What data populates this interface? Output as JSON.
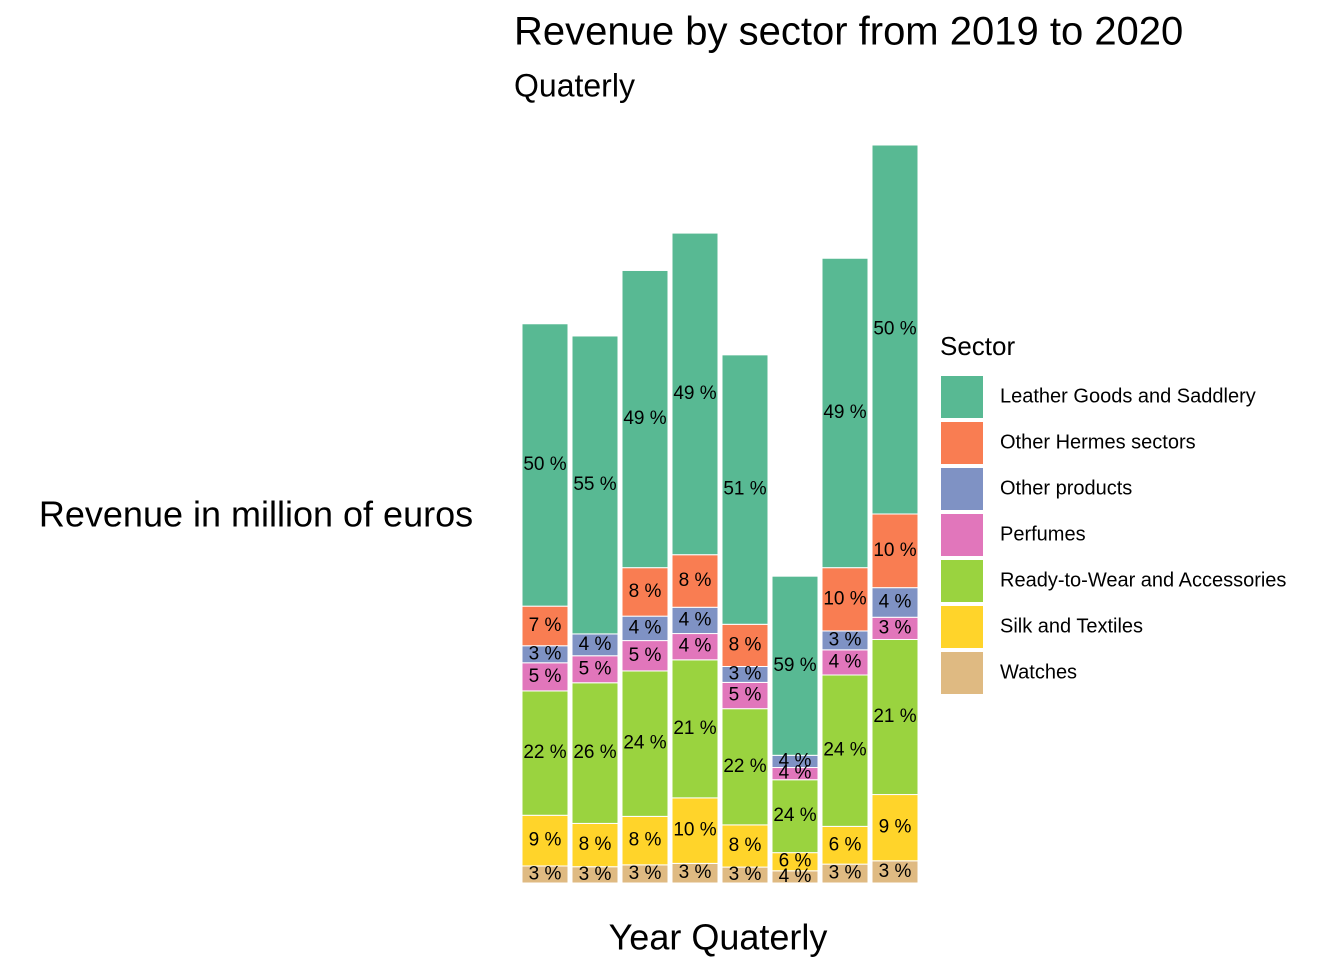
{
  "chart_data": {
    "type": "stacked_bar",
    "title": "Revenue by sector from 2019 to 2020",
    "subtitle": "Quaterly",
    "x_label": "Year Quaterly",
    "y_label": "Revenue in million of euros",
    "legend_title": "Sector",
    "legend_position": "right",
    "categories": [
      null,
      null,
      null,
      null,
      null,
      null,
      null,
      null
    ],
    "series": [
      {
        "name": "Leather Goods and Saddlery",
        "color": "#58b993",
        "values": [
          763,
          805,
          803,
          869,
          728,
          484,
          836,
          997
        ],
        "value_labels": [
          "50 %",
          "55 %",
          "49 %",
          "49 %",
          "51 %",
          "59 %",
          "49 %",
          "50 %"
        ]
      },
      {
        "name": "Other Hermes sectors",
        "color": "#f97d52",
        "values": [
          107,
          null,
          131,
          142,
          114,
          null,
          171,
          199
        ],
        "value_labels": [
          "7 %",
          null,
          "8 %",
          "8 %",
          "8 %",
          null,
          "10 %",
          "10 %"
        ]
      },
      {
        "name": "Other products",
        "color": "#7f92c4",
        "values": [
          46,
          59,
          66,
          71,
          43,
          33,
          51,
          80
        ],
        "value_labels": [
          "3 %",
          "4 %",
          "4 %",
          "4 %",
          "3 %",
          "4 %",
          "3 %",
          "4 %"
        ]
      },
      {
        "name": "Perfumes",
        "color": "#e176bb",
        "values": [
          76,
          73,
          82,
          71,
          71,
          33,
          68,
          60
        ],
        "value_labels": [
          "5 %",
          "5 %",
          "5 %",
          "4 %",
          "5 %",
          "4 %",
          "4 %",
          "3 %"
        ]
      },
      {
        "name": "Ready-to-Wear and Accessories",
        "color": "#9ad33f",
        "values": [
          336,
          380,
          393,
          373,
          314,
          197,
          409,
          419
        ],
        "value_labels": [
          "22 %",
          "26 %",
          "24 %",
          "21 %",
          "22 %",
          "24 %",
          "24 %",
          "21 %"
        ]
      },
      {
        "name": "Silk and Textiles",
        "color": "#ffd42a",
        "values": [
          137,
          117,
          131,
          177,
          114,
          49,
          102,
          179
        ],
        "value_labels": [
          "9 %",
          "8 %",
          "8 %",
          "10 %",
          "8 %",
          "6 %",
          "6 %",
          "9 %"
        ]
      },
      {
        "name": "Watches",
        "color": "#dfba82",
        "values": [
          46,
          44,
          49,
          53,
          43,
          33,
          51,
          60
        ],
        "value_labels": [
          "3 %",
          "3 %",
          "3 %",
          "3 %",
          "3 %",
          "4 %",
          "3 %",
          "3 %"
        ]
      }
    ]
  }
}
